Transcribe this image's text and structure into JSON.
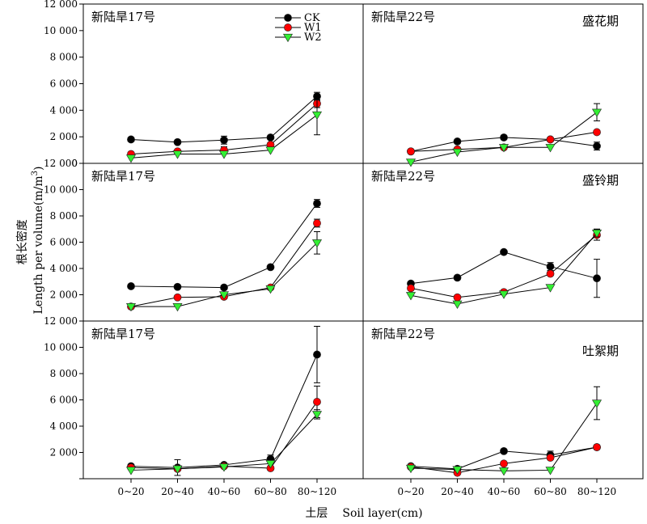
{
  "chart_data": {
    "type": "line",
    "ylabel_cn": "根长密度",
    "ylabel_en": "Length per volume(m/m",
    "ylabel_sup": "3",
    "ylabel_close": ")",
    "xlabel_cn": "土层",
    "xlabel_en": "Soil layer(cm)",
    "categories": [
      "0~20",
      "20~40",
      "40~60",
      "60~80",
      "80~120"
    ],
    "y_ticks": [
      "12 000",
      "10 000",
      "8 000",
      "6 000",
      "4 000",
      "2 000",
      "0"
    ],
    "y_range": [
      0,
      12000
    ],
    "legend": {
      "placement": "top-right of first panel",
      "entries": [
        {
          "name": "CK",
          "color": "#000000",
          "marker": "circle"
        },
        {
          "name": "W1",
          "color": "#ff0000",
          "marker": "circle"
        },
        {
          "name": "W2",
          "color": "#33ee33",
          "marker": "triangle-down"
        }
      ]
    },
    "panels": [
      {
        "title": "新陆旱17号",
        "stage": "",
        "series": [
          {
            "name": "CK",
            "values": [
              1800,
              1600,
              1750,
              1950,
              5050
            ],
            "errors": [
              0,
              0,
              300,
              0,
              300
            ]
          },
          {
            "name": "W1",
            "values": [
              700,
              900,
              1000,
              1400,
              4500
            ],
            "errors": [
              0,
              0,
              250,
              0,
              300
            ]
          },
          {
            "name": "W2",
            "values": [
              400,
              700,
              700,
              1000,
              3650
            ],
            "errors": [
              0,
              0,
              0,
              0,
              1500
            ]
          }
        ]
      },
      {
        "title": "新陆旱22号",
        "stage": "盛花期",
        "series": [
          {
            "name": "CK",
            "values": [
              900,
              1650,
              1950,
              1800,
              1300
            ],
            "errors": [
              0,
              0,
              0,
              0,
              300
            ]
          },
          {
            "name": "W1",
            "values": [
              900,
              1050,
              1200,
              1800,
              2350
            ],
            "errors": [
              0,
              0,
              0,
              0,
              0
            ]
          },
          {
            "name": "W2",
            "values": [
              100,
              850,
              1200,
              1200,
              3850
            ],
            "errors": [
              0,
              0,
              0,
              0,
              650
            ]
          }
        ]
      },
      {
        "title": "新陆旱17号",
        "stage": "",
        "series": [
          {
            "name": "CK",
            "values": [
              2650,
              2600,
              2550,
              4100,
              8950
            ],
            "errors": [
              0,
              0,
              0,
              0,
              300
            ]
          },
          {
            "name": "W1",
            "values": [
              1100,
              1800,
              1850,
              2550,
              7450
            ],
            "errors": [
              0,
              0,
              0,
              0,
              300
            ]
          },
          {
            "name": "W2",
            "values": [
              1100,
              1100,
              2000,
              2450,
              5950
            ],
            "errors": [
              0,
              0,
              0,
              0,
              850
            ]
          }
        ]
      },
      {
        "title": "新陆旱22号",
        "stage": "盛铃期",
        "series": [
          {
            "name": "CK",
            "values": [
              2850,
              3300,
              5250,
              4150,
              3250
            ],
            "errors": [
              0,
              0,
              0,
              300,
              1450
            ]
          },
          {
            "name": "W1",
            "values": [
              2500,
              1800,
              2200,
              3600,
              6550
            ],
            "errors": [
              0,
              0,
              0,
              0,
              400
            ]
          },
          {
            "name": "W2",
            "values": [
              1950,
              1300,
              2050,
              2550,
              6700
            ],
            "errors": [
              0,
              0,
              0,
              0,
              300
            ]
          }
        ]
      },
      {
        "title": "新陆旱17号",
        "stage": "",
        "series": [
          {
            "name": "CK",
            "values": [
              950,
              850,
              1050,
              1500,
              9450
            ],
            "errors": [
              0,
              600,
              0,
              300,
              2150
            ]
          },
          {
            "name": "W1",
            "values": [
              850,
              750,
              950,
              800,
              5850
            ],
            "errors": [
              0,
              0,
              0,
              0,
              1200
            ]
          },
          {
            "name": "W2",
            "values": [
              650,
              750,
              900,
              1150,
              4900
            ],
            "errors": [
              0,
              0,
              0,
              0,
              350
            ]
          }
        ]
      },
      {
        "title": "新陆旱22号",
        "stage": "吐絮期",
        "series": [
          {
            "name": "CK",
            "values": [
              950,
              750,
              2100,
              1800,
              2400
            ],
            "errors": [
              0,
              0,
              0,
              300,
              0
            ]
          },
          {
            "name": "W1",
            "values": [
              900,
              450,
              1150,
              1600,
              2400
            ],
            "errors": [
              0,
              0,
              0,
              0,
              0
            ]
          },
          {
            "name": "W2",
            "values": [
              800,
              700,
              600,
              650,
              5750
            ],
            "errors": [
              0,
              0,
              0,
              0,
              1250
            ]
          }
        ]
      }
    ]
  }
}
